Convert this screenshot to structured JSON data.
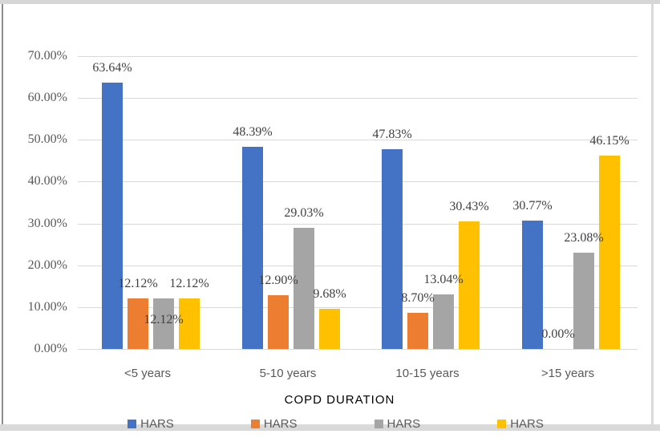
{
  "page": {
    "background": "#ffffff",
    "edge_strip_color": "#d9d9d9",
    "left_border_color": "#8c8c8c"
  },
  "chart_data": {
    "type": "bar",
    "title": "",
    "xlabel": "COPD DURATION",
    "ylabel": "",
    "categories": [
      "<5 years",
      "5-10 years",
      "10-15 years",
      ">15 years"
    ],
    "series": [
      {
        "name": "HARS",
        "color": "#4472C4",
        "values": [
          63.64,
          48.39,
          47.83,
          30.77
        ],
        "labels": [
          "63.64%",
          "48.39%",
          "47.83%",
          "30.77%"
        ]
      },
      {
        "name": "HARS",
        "color": "#ED7D31",
        "values": [
          12.12,
          12.9,
          8.7,
          0.0
        ],
        "labels": [
          "12.12%",
          "12.90%",
          "8.70%",
          "0.00%"
        ]
      },
      {
        "name": "HARS",
        "color": "#A5A5A5",
        "values": [
          12.12,
          29.03,
          13.04,
          23.08
        ],
        "labels": [
          "12.12%",
          "29.03%",
          "13.04%",
          "23.08%"
        ]
      },
      {
        "name": "HARS",
        "color": "#FFC000",
        "values": [
          12.12,
          9.68,
          30.43,
          46.15
        ],
        "labels": [
          "12.12%",
          "9.68%",
          "30.43%",
          "46.15%"
        ]
      }
    ],
    "ylim": [
      0,
      70
    ],
    "yticks": [
      "0.00%",
      "10.00%",
      "20.00%",
      "30.00%",
      "40.00%",
      "50.00%",
      "60.00%",
      "70.00%"
    ],
    "grid": true,
    "legend_position": "bottom",
    "label_offsets": [
      {
        "series": 2,
        "point": 0,
        "dx": 0,
        "dy": 45
      }
    ],
    "colors": {
      "gridline": "#d9d9d9",
      "axis_text": "#595959",
      "data_label_text": "#404040"
    }
  }
}
